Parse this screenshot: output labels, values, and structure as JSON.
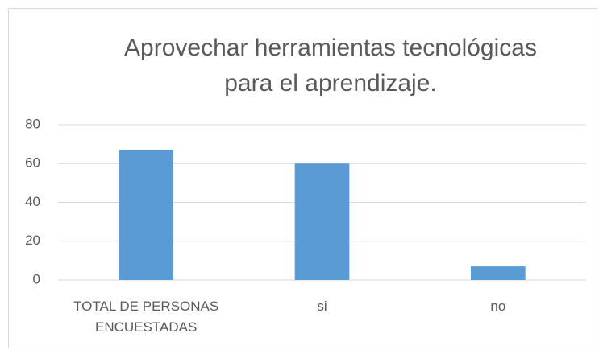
{
  "chart_data": {
    "type": "bar",
    "title": "Aprovechar herramientas tecnológicas para el aprendizaje.",
    "categories": [
      "TOTAL DE PERSONAS ENCUESTADAS",
      "si",
      "no"
    ],
    "values": [
      67,
      60,
      7
    ],
    "color": "#5b9bd5",
    "ylim": [
      0,
      80
    ],
    "yticks": [
      0,
      20,
      40,
      60,
      80
    ],
    "grid": true
  }
}
